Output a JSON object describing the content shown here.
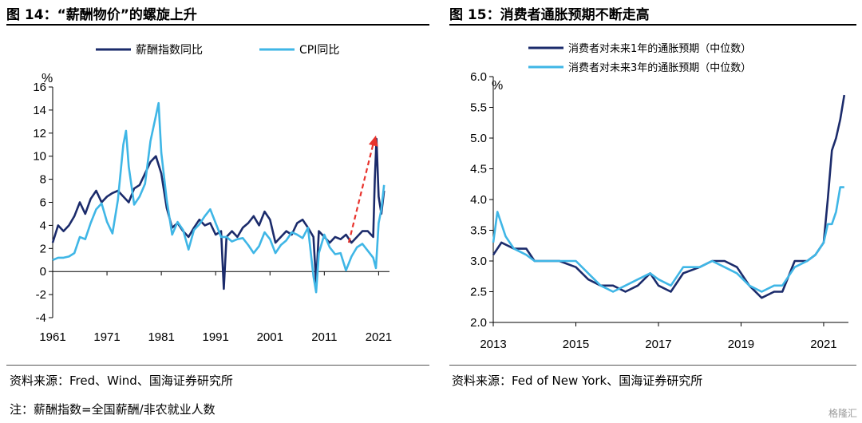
{
  "figure14": {
    "title": "图 14：“薪酬物价”的螺旋上升",
    "source": "资料来源：Fred、Wind、国海证券研究所",
    "note": "注：薪酬指数=全国薪酬/非农就业人数",
    "chart_data": {
      "type": "line",
      "ylabel": "%",
      "ylim": [
        -4,
        16
      ],
      "yticks": [
        -4,
        -2,
        0,
        2,
        4,
        6,
        8,
        10,
        12,
        14,
        16
      ],
      "xlim": [
        1961,
        2023
      ],
      "xticks": [
        1961,
        1971,
        1981,
        1991,
        2001,
        2011,
        2021
      ],
      "legend_position": "top",
      "annotation": {
        "type": "dashed-arrow",
        "color": "#e8322c",
        "from": [
          2015.5,
          2.5
        ],
        "to": [
          2020.5,
          11.8
        ]
      },
      "series": [
        {
          "name": "薪酬指数同比",
          "color": "#1b2b6b",
          "x": [
            1961,
            1962,
            1963,
            1964,
            1965,
            1966,
            1967,
            1968,
            1969,
            1970,
            1971,
            1972,
            1973,
            1974,
            1975,
            1976,
            1977,
            1978,
            1979,
            1980,
            1981,
            1982,
            1983,
            1984,
            1985,
            1986,
            1987,
            1988,
            1989,
            1990,
            1991,
            1992,
            1992.5,
            1993,
            1994,
            1995,
            1996,
            1997,
            1998,
            1999,
            2000,
            2001,
            2002,
            2003,
            2004,
            2005,
            2006,
            2007,
            2008,
            2009,
            2009.5,
            2010,
            2011,
            2012,
            2013,
            2014,
            2015,
            2016,
            2017,
            2018,
            2019,
            2020,
            2020.3,
            2020.6,
            2021,
            2021.5,
            2022
          ],
          "values": [
            2.5,
            4.0,
            3.5,
            4.0,
            4.8,
            6.0,
            5.0,
            6.3,
            7.0,
            6.0,
            6.5,
            6.8,
            7.0,
            6.5,
            6.0,
            7.2,
            7.5,
            8.5,
            9.5,
            10.0,
            8.5,
            5.5,
            3.8,
            4.2,
            3.5,
            3.0,
            3.8,
            4.5,
            4.0,
            4.2,
            3.2,
            3.5,
            -1.5,
            3.0,
            3.5,
            3.0,
            3.8,
            4.2,
            4.8,
            4.0,
            5.2,
            4.5,
            2.5,
            3.0,
            3.5,
            3.2,
            4.2,
            4.5,
            3.8,
            3.0,
            -1.0,
            3.5,
            3.0,
            2.5,
            3.0,
            2.8,
            3.2,
            2.5,
            3.0,
            3.5,
            3.5,
            3.0,
            8.0,
            11.5,
            6.5,
            5.0,
            7.0
          ]
        },
        {
          "name": "CPI同比",
          "color": "#3fb6e6",
          "x": [
            1961,
            1962,
            1963,
            1964,
            1965,
            1966,
            1967,
            1968,
            1969,
            1970,
            1971,
            1972,
            1973,
            1974,
            1974.5,
            1975,
            1976,
            1977,
            1978,
            1979,
            1980,
            1980.5,
            1981,
            1982,
            1983,
            1984,
            1985,
            1986,
            1987,
            1988,
            1989,
            1990,
            1991,
            1992,
            1993,
            1994,
            1995,
            1996,
            1997,
            1998,
            1999,
            2000,
            2001,
            2002,
            2003,
            2004,
            2005,
            2006,
            2007,
            2008,
            2009,
            2009.5,
            2010,
            2011,
            2012,
            2013,
            2014,
            2015,
            2016,
            2017,
            2018,
            2019,
            2020,
            2020.5,
            2021,
            2021.5,
            2022
          ],
          "values": [
            1.0,
            1.2,
            1.2,
            1.3,
            1.6,
            3.0,
            2.8,
            4.2,
            5.4,
            5.9,
            4.3,
            3.3,
            6.2,
            11.0,
            12.2,
            9.1,
            5.8,
            6.5,
            7.6,
            11.3,
            13.5,
            14.6,
            10.3,
            6.2,
            3.2,
            4.3,
            3.6,
            1.9,
            3.6,
            4.1,
            4.8,
            5.4,
            4.2,
            3.0,
            3.0,
            2.6,
            2.8,
            2.9,
            2.3,
            1.6,
            2.2,
            3.4,
            2.8,
            1.6,
            2.3,
            2.7,
            3.4,
            3.2,
            2.9,
            3.8,
            -0.4,
            -1.8,
            1.6,
            3.2,
            2.1,
            1.5,
            1.6,
            0.1,
            1.3,
            2.1,
            2.4,
            1.8,
            1.2,
            0.3,
            4.2,
            5.4,
            7.5
          ]
        }
      ]
    }
  },
  "figure15": {
    "title": "图 15：消费者通胀预期不断走高",
    "source": "资料来源：Fed of New York、国海证券研究所",
    "chart_data": {
      "type": "line",
      "ylabel": "%",
      "ylim": [
        2.0,
        6.0
      ],
      "yticks": [
        "2.0",
        "2.5",
        "3.0",
        "3.5",
        "4.0",
        "4.5",
        "5.0",
        "5.5",
        "6.0"
      ],
      "xlim": [
        2013,
        2021.6
      ],
      "xticks": [
        2013,
        2015,
        2017,
        2019,
        2021
      ],
      "legend_position": "top-right",
      "series": [
        {
          "name": "消费者对未来1年的通胀预期（中位数）",
          "color": "#1b2b6b",
          "x": [
            2013.0,
            2013.2,
            2013.5,
            2013.8,
            2014.0,
            2014.3,
            2014.6,
            2015.0,
            2015.3,
            2015.6,
            2015.9,
            2016.2,
            2016.5,
            2016.8,
            2017.0,
            2017.3,
            2017.6,
            2018.0,
            2018.3,
            2018.6,
            2018.9,
            2019.2,
            2019.5,
            2019.8,
            2020.0,
            2020.3,
            2020.6,
            2020.8,
            2021.0,
            2021.1,
            2021.2,
            2021.3,
            2021.4,
            2021.5
          ],
          "values": [
            3.1,
            3.3,
            3.2,
            3.2,
            3.0,
            3.0,
            3.0,
            2.9,
            2.7,
            2.6,
            2.6,
            2.5,
            2.6,
            2.8,
            2.6,
            2.5,
            2.8,
            2.9,
            3.0,
            3.0,
            2.9,
            2.6,
            2.4,
            2.5,
            2.5,
            3.0,
            3.0,
            3.1,
            3.3,
            4.0,
            4.8,
            5.0,
            5.3,
            5.7
          ]
        },
        {
          "name": "消费者对未来3年的通胀预期（中位数）",
          "color": "#3fb6e6",
          "x": [
            2013.0,
            2013.1,
            2013.3,
            2013.5,
            2013.8,
            2014.0,
            2014.3,
            2014.6,
            2015.0,
            2015.3,
            2015.6,
            2015.9,
            2016.2,
            2016.5,
            2016.8,
            2017.0,
            2017.3,
            2017.6,
            2018.0,
            2018.3,
            2018.6,
            2018.9,
            2019.2,
            2019.5,
            2019.8,
            2020.0,
            2020.3,
            2020.6,
            2020.8,
            2021.0,
            2021.1,
            2021.2,
            2021.3,
            2021.4,
            2021.5
          ],
          "values": [
            3.3,
            3.8,
            3.4,
            3.2,
            3.1,
            3.0,
            3.0,
            3.0,
            3.0,
            2.8,
            2.6,
            2.5,
            2.6,
            2.7,
            2.8,
            2.7,
            2.6,
            2.9,
            2.9,
            3.0,
            2.9,
            2.8,
            2.6,
            2.5,
            2.6,
            2.6,
            2.9,
            3.0,
            3.1,
            3.3,
            3.6,
            3.6,
            3.8,
            4.2,
            4.2
          ]
        }
      ]
    }
  },
  "watermark": "格隆汇"
}
